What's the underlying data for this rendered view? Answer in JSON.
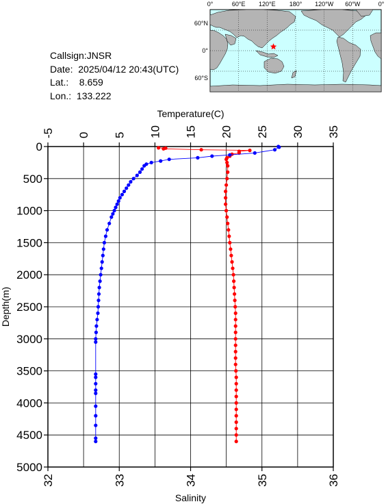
{
  "station": {
    "callsign": "Callsign:JNSR",
    "date": "Date:  2025/04/12 20:43(UTC)",
    "lat": "Lat.:    8.659",
    "lon": "Lon.:  133.222"
  },
  "map": {
    "lon_labels": [
      "0°",
      "60°E",
      "120°E",
      "180°",
      "120°W",
      "60°W",
      "0°"
    ],
    "lat_labels": [
      "60°N",
      "0°",
      "60°S"
    ],
    "ocean_color": "#ccffff",
    "land_color": "#b4b4b4",
    "marker_color": "#ff0000",
    "marker": {
      "lon": 133.222,
      "lat": 8.659
    }
  },
  "chart_data": {
    "type": "line",
    "ylabel": "Depth(m)",
    "ylim": [
      5000,
      0
    ],
    "yticks": [
      0,
      500,
      1000,
      1500,
      2000,
      2500,
      3000,
      3500,
      4000,
      4500,
      5000
    ],
    "grid": true,
    "temperature_axis": {
      "label": "Temperature(C)",
      "position": "top",
      "range": [
        -5,
        35
      ],
      "ticks": [
        -5,
        0,
        5,
        10,
        15,
        20,
        25,
        30,
        35
      ]
    },
    "salinity_axis": {
      "label": "Salinity",
      "position": "bottom",
      "range": [
        32,
        36
      ],
      "ticks": [
        32,
        33,
        34,
        35,
        36
      ]
    },
    "series": [
      {
        "axis": "temperature",
        "color": "#ff0000",
        "depth": [
          20,
          25,
          35,
          50,
          60,
          75,
          100,
          120,
          150,
          175,
          200,
          250,
          300,
          400,
          500,
          600,
          700,
          800,
          900,
          1000,
          1100,
          1200,
          1300,
          1400,
          1500,
          1600,
          1700,
          1800,
          1900,
          2000,
          2100,
          2200,
          2300,
          2400,
          2500,
          2600,
          2700,
          2800,
          2900,
          3000,
          3100,
          3200,
          3300,
          3400,
          3500,
          3600,
          3700,
          3800,
          3900,
          4000,
          4100,
          4200,
          4300,
          4400,
          4500,
          4600
        ],
        "values": [
          10.5,
          11.5,
          11.2,
          16.5,
          23.3,
          21.8,
          21.8,
          20.8,
          20.5,
          20.1,
          20.0,
          20.1,
          20.2,
          20.2,
          20.1,
          20.0,
          19.9,
          19.9,
          19.9,
          20.0,
          20.1,
          20.2,
          20.3,
          20.4,
          20.5,
          20.6,
          20.7,
          20.8,
          20.9,
          21.0,
          21.05,
          21.1,
          21.15,
          21.2,
          21.25,
          21.3,
          21.3,
          21.3,
          21.3,
          21.3,
          21.3,
          21.3,
          21.3,
          21.3,
          21.35,
          21.4,
          21.4,
          21.4,
          21.4,
          21.4,
          21.4,
          21.4,
          21.4,
          21.4,
          21.4,
          21.4
        ]
      },
      {
        "axis": "salinity",
        "color": "#0000ff",
        "depth": [
          0,
          10,
          50,
          100,
          130,
          150,
          175,
          200,
          225,
          250,
          275,
          300,
          350,
          400,
          450,
          500,
          550,
          600,
          650,
          700,
          750,
          800,
          850,
          900,
          950,
          1000,
          1050,
          1100,
          1200,
          1300,
          1400,
          1500,
          1600,
          1700,
          1800,
          1900,
          2000,
          2100,
          2200,
          2300,
          2400,
          2500,
          2600,
          2700,
          2800,
          2900,
          3000,
          3050,
          3550,
          3600,
          3700,
          3800,
          3850,
          4050,
          4200,
          4350,
          4550,
          4600
        ],
        "values": [
          35.23,
          35.24,
          35.18,
          34.9,
          34.55,
          34.3,
          34.1,
          33.7,
          33.58,
          33.45,
          33.38,
          33.35,
          33.32,
          33.29,
          33.25,
          33.2,
          33.16,
          33.13,
          33.1,
          33.07,
          33.04,
          33.01,
          32.99,
          32.97,
          32.95,
          32.93,
          32.91,
          32.89,
          32.86,
          32.83,
          32.81,
          32.79,
          32.78,
          32.77,
          32.76,
          32.75,
          32.74,
          32.73,
          32.72,
          32.715,
          32.71,
          32.705,
          32.7,
          32.69,
          32.68,
          32.675,
          32.67,
          32.67,
          32.67,
          32.67,
          32.67,
          32.67,
          32.67,
          32.67,
          32.67,
          32.67,
          32.67,
          32.67
        ]
      }
    ]
  }
}
